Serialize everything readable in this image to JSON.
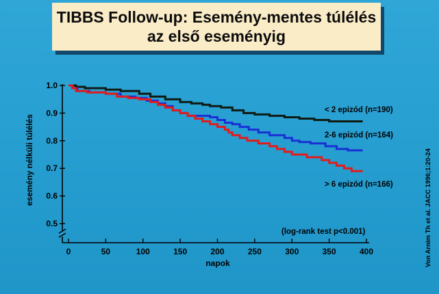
{
  "title": {
    "line1": "TIBBS Follow-up: Esemény-mentes túlélés",
    "line2": "az első eseményig"
  },
  "source": "Von Arnim Th et al. JACC 1996;1:20-24",
  "chart_data": {
    "type": "line",
    "title": "TIBBS Follow-up: Esemény-mentes túlélés az első eseményig",
    "xlabel": "napok",
    "ylabel": "esemény nélküli túlélés",
    "xlim": [
      0,
      400
    ],
    "ylim": [
      0.5,
      1.0
    ],
    "axis_break": true,
    "x_ticks": [
      0,
      50,
      100,
      150,
      200,
      250,
      300,
      350,
      400
    ],
    "y_ticks": [
      1.0,
      0.9,
      0.8,
      0.7,
      0.6,
      0.5
    ],
    "x_tick_labels": [
      "0",
      "50",
      "100",
      "150",
      "200",
      "250",
      "300",
      "350",
      "400"
    ],
    "y_tick_labels": [
      "1.0",
      "0.9",
      "0.8",
      "0.7",
      "0.6",
      "0.5"
    ],
    "grid": false,
    "step": true,
    "annotation": "(log-rank test p<0.001)",
    "series": [
      {
        "name": "< 2 epizód (n=190)",
        "color": "#0e1a12",
        "points": [
          [
            0,
            1.0
          ],
          [
            10,
            0.995
          ],
          [
            22,
            0.99
          ],
          [
            50,
            0.985
          ],
          [
            70,
            0.98
          ],
          [
            95,
            0.97
          ],
          [
            110,
            0.96
          ],
          [
            130,
            0.95
          ],
          [
            150,
            0.94
          ],
          [
            165,
            0.935
          ],
          [
            180,
            0.93
          ],
          [
            190,
            0.925
          ],
          [
            205,
            0.92
          ],
          [
            220,
            0.91
          ],
          [
            235,
            0.9
          ],
          [
            250,
            0.895
          ],
          [
            270,
            0.89
          ],
          [
            290,
            0.885
          ],
          [
            310,
            0.88
          ],
          [
            330,
            0.875
          ],
          [
            350,
            0.87
          ],
          [
            395,
            0.87
          ]
        ]
      },
      {
        "name": "2-6 epizód (n=164)",
        "color": "#1a2fd6",
        "points": [
          [
            0,
            1.0
          ],
          [
            6,
            0.99
          ],
          [
            12,
            0.98
          ],
          [
            28,
            0.975
          ],
          [
            50,
            0.97
          ],
          [
            70,
            0.96
          ],
          [
            90,
            0.955
          ],
          [
            105,
            0.945
          ],
          [
            120,
            0.935
          ],
          [
            130,
            0.925
          ],
          [
            140,
            0.91
          ],
          [
            150,
            0.9
          ],
          [
            160,
            0.89
          ],
          [
            190,
            0.885
          ],
          [
            200,
            0.875
          ],
          [
            210,
            0.865
          ],
          [
            220,
            0.86
          ],
          [
            230,
            0.85
          ],
          [
            242,
            0.84
          ],
          [
            255,
            0.83
          ],
          [
            270,
            0.82
          ],
          [
            290,
            0.81
          ],
          [
            300,
            0.8
          ],
          [
            310,
            0.795
          ],
          [
            325,
            0.79
          ],
          [
            345,
            0.78
          ],
          [
            360,
            0.77
          ],
          [
            375,
            0.765
          ],
          [
            395,
            0.765
          ]
        ]
      },
      {
        "name": "> 6 epizód (n=166)",
        "color": "#e31b1b",
        "points": [
          [
            0,
            1.0
          ],
          [
            5,
            0.99
          ],
          [
            10,
            0.98
          ],
          [
            25,
            0.975
          ],
          [
            50,
            0.97
          ],
          [
            65,
            0.96
          ],
          [
            80,
            0.955
          ],
          [
            95,
            0.95
          ],
          [
            110,
            0.94
          ],
          [
            120,
            0.93
          ],
          [
            130,
            0.92
          ],
          [
            140,
            0.91
          ],
          [
            150,
            0.9
          ],
          [
            160,
            0.89
          ],
          [
            170,
            0.88
          ],
          [
            180,
            0.87
          ],
          [
            190,
            0.86
          ],
          [
            200,
            0.85
          ],
          [
            210,
            0.84
          ],
          [
            215,
            0.83
          ],
          [
            220,
            0.82
          ],
          [
            230,
            0.81
          ],
          [
            240,
            0.8
          ],
          [
            255,
            0.79
          ],
          [
            270,
            0.78
          ],
          [
            280,
            0.77
          ],
          [
            290,
            0.76
          ],
          [
            300,
            0.75
          ],
          [
            320,
            0.74
          ],
          [
            340,
            0.73
          ],
          [
            350,
            0.72
          ],
          [
            360,
            0.71
          ],
          [
            370,
            0.7
          ],
          [
            380,
            0.69
          ],
          [
            395,
            0.69
          ]
        ]
      }
    ]
  }
}
